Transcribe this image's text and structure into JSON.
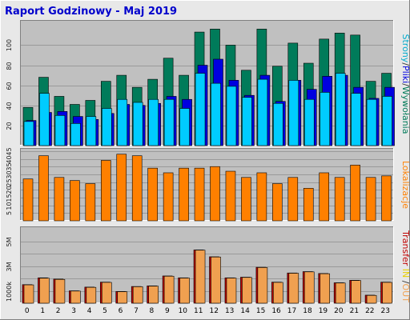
{
  "title": "Raport Godzinowy -  Maj 2019",
  "colors": {
    "background": "#e8e8e8",
    "panel": "#c0c0c0",
    "grid": "#9a9a9a",
    "title": "#0000cc",
    "hits": "#007b5a",
    "files": "#0000e0",
    "pages": "#00ccff",
    "sites": "#ff8000",
    "kbytes_in": "#c00000",
    "kbytes_out": "#f0a050"
  },
  "legends": {
    "top": [
      {
        "text": "Strony",
        "color": "#00aacc"
      },
      {
        "text": "/",
        "color": "#333333"
      },
      {
        "text": "Pliki",
        "color": "#0000e0"
      },
      {
        "text": "/",
        "color": "#333333"
      },
      {
        "text": "Wywołania",
        "color": "#007b5a"
      }
    ],
    "middle": [
      {
        "text": "Lokalizacje",
        "color": "#ff8000"
      }
    ],
    "bottom": [
      {
        "text": "Transfer",
        "color": "#c00000"
      },
      {
        "text": " IN ",
        "color": "#e8d000"
      },
      {
        "text": "/",
        "color": "#333333"
      },
      {
        "text": "OUT",
        "color": "#f0a050"
      }
    ]
  },
  "chart_data": [
    {
      "type": "bar",
      "categories": [
        "0",
        "1",
        "2",
        "3",
        "4",
        "5",
        "6",
        "7",
        "8",
        "9",
        "10",
        "11",
        "12",
        "13",
        "14",
        "15",
        "16",
        "17",
        "18",
        "19",
        "20",
        "21",
        "22",
        "23"
      ],
      "ylim": [
        0,
        125
      ],
      "yticks": [
        20,
        40,
        60,
        80,
        100
      ],
      "series": [
        {
          "name": "Wywołania",
          "values": [
            38,
            68,
            49,
            41,
            45,
            64,
            70,
            58,
            66,
            87,
            70,
            113,
            116,
            100,
            75,
            116,
            79,
            102,
            82,
            106,
            112,
            110,
            64,
            72
          ]
        },
        {
          "name": "Pliki",
          "values": [
            25,
            33,
            34,
            29,
            26,
            32,
            41,
            40,
            42,
            49,
            46,
            80,
            86,
            65,
            50,
            70,
            44,
            65,
            56,
            69,
            70,
            58,
            47,
            58
          ]
        },
        {
          "name": "Strony",
          "values": [
            24,
            52,
            30,
            22,
            29,
            37,
            46,
            43,
            46,
            46,
            37,
            72,
            62,
            59,
            48,
            66,
            42,
            65,
            46,
            53,
            72,
            52,
            46,
            49
          ]
        }
      ]
    },
    {
      "type": "bar",
      "categories": [
        "0",
        "1",
        "2",
        "3",
        "4",
        "5",
        "6",
        "7",
        "8",
        "9",
        "10",
        "11",
        "12",
        "13",
        "14",
        "15",
        "16",
        "17",
        "18",
        "19",
        "20",
        "21",
        "22",
        "23"
      ],
      "ylim": [
        0,
        47
      ],
      "yticks": [
        5,
        10,
        15,
        20,
        25,
        30,
        35,
        40,
        45
      ],
      "series": [
        {
          "name": "Lokalizacje",
          "values": [
            27,
            42,
            28,
            26,
            24,
            39,
            43,
            42,
            34,
            31,
            34,
            34,
            35,
            32,
            28,
            31,
            24,
            28,
            21,
            31,
            28,
            36,
            28,
            29
          ]
        }
      ]
    },
    {
      "type": "bar",
      "categories": [
        "0",
        "1",
        "2",
        "3",
        "4",
        "5",
        "6",
        "7",
        "8",
        "9",
        "10",
        "11",
        "12",
        "13",
        "14",
        "15",
        "16",
        "17",
        "18",
        "19",
        "20",
        "21",
        "22",
        "23"
      ],
      "ylim": [
        0,
        6200
      ],
      "yticks": [
        1000,
        2000,
        3000,
        4000,
        5000
      ],
      "ytick_labels": {
        "1000": "1000k",
        "3000": "3M",
        "5000": "5M"
      },
      "series": [
        {
          "name": "IN",
          "values": [
            1500,
            2050,
            1950,
            1000,
            1300,
            1700,
            950,
            1350,
            1400,
            2200,
            2050,
            4300,
            3750,
            2050,
            2100,
            2900,
            1700,
            2440,
            2550,
            2400,
            1650,
            1850,
            650,
            1700
          ]
        },
        {
          "name": "OUT",
          "values": [
            1480,
            2020,
            1920,
            980,
            1280,
            1680,
            930,
            1330,
            1380,
            2180,
            2030,
            4280,
            3730,
            2030,
            2080,
            2880,
            1680,
            2420,
            2530,
            2380,
            1630,
            1830,
            630,
            1680
          ]
        }
      ]
    }
  ]
}
